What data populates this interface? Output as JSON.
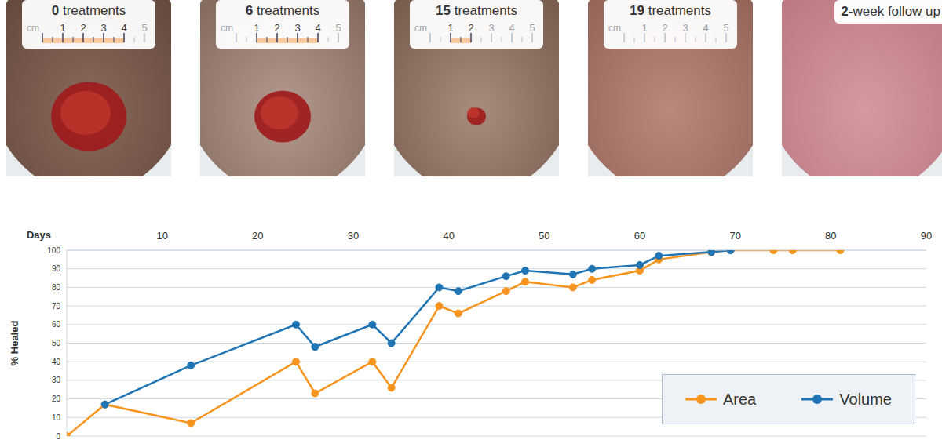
{
  "panels": [
    {
      "label": "0 treatments",
      "ruler": {
        "unit": "cm",
        "ticks": [
          1,
          2,
          3,
          4,
          5
        ],
        "marked": [
          0,
          4
        ]
      }
    },
    {
      "label": "6 treatments",
      "ruler": {
        "unit": "cm",
        "ticks": [
          1,
          2,
          3,
          4,
          5
        ],
        "marked": [
          1,
          4
        ]
      }
    },
    {
      "label": "15 treatments",
      "ruler": {
        "unit": "cm",
        "ticks": [
          1,
          2,
          3,
          4,
          5
        ],
        "marked": [
          1,
          2
        ]
      }
    },
    {
      "label": "19 treatments",
      "ruler": {
        "unit": "cm",
        "ticks": [
          1,
          2,
          3,
          4,
          5
        ]
      }
    },
    {
      "label": "2-week follow up"
    }
  ],
  "chart_data": {
    "type": "line",
    "x_label": "Days",
    "y_label": "% Healed",
    "x": [
      0,
      4,
      13,
      24,
      26,
      32,
      34,
      39,
      41,
      46,
      48,
      53,
      55,
      60,
      62,
      67.5,
      69.5,
      74,
      76,
      81
    ],
    "series": [
      {
        "name": "Area",
        "color": "#f7941d",
        "values": [
          0,
          17,
          7,
          40,
          23,
          40,
          26,
          70,
          66,
          78,
          83,
          80,
          84,
          89,
          95,
          99,
          100,
          100,
          100,
          100
        ]
      },
      {
        "name": "Volume",
        "color": "#1f74b4",
        "values": [
          null,
          17,
          38,
          60,
          48,
          60,
          50,
          80,
          78,
          86,
          89,
          87,
          90,
          92,
          97,
          99,
          100,
          null,
          null,
          null
        ]
      }
    ],
    "xlim": [
      0,
      90
    ],
    "xticks": [
      10,
      20,
      30,
      40,
      50,
      60,
      70,
      80,
      90
    ],
    "ylim": [
      0,
      100
    ],
    "yticks": [
      0,
      10,
      20,
      30,
      40,
      50,
      60,
      70,
      80,
      90,
      100
    ],
    "grid": true,
    "legend": "lower right",
    "marker": "circle"
  }
}
